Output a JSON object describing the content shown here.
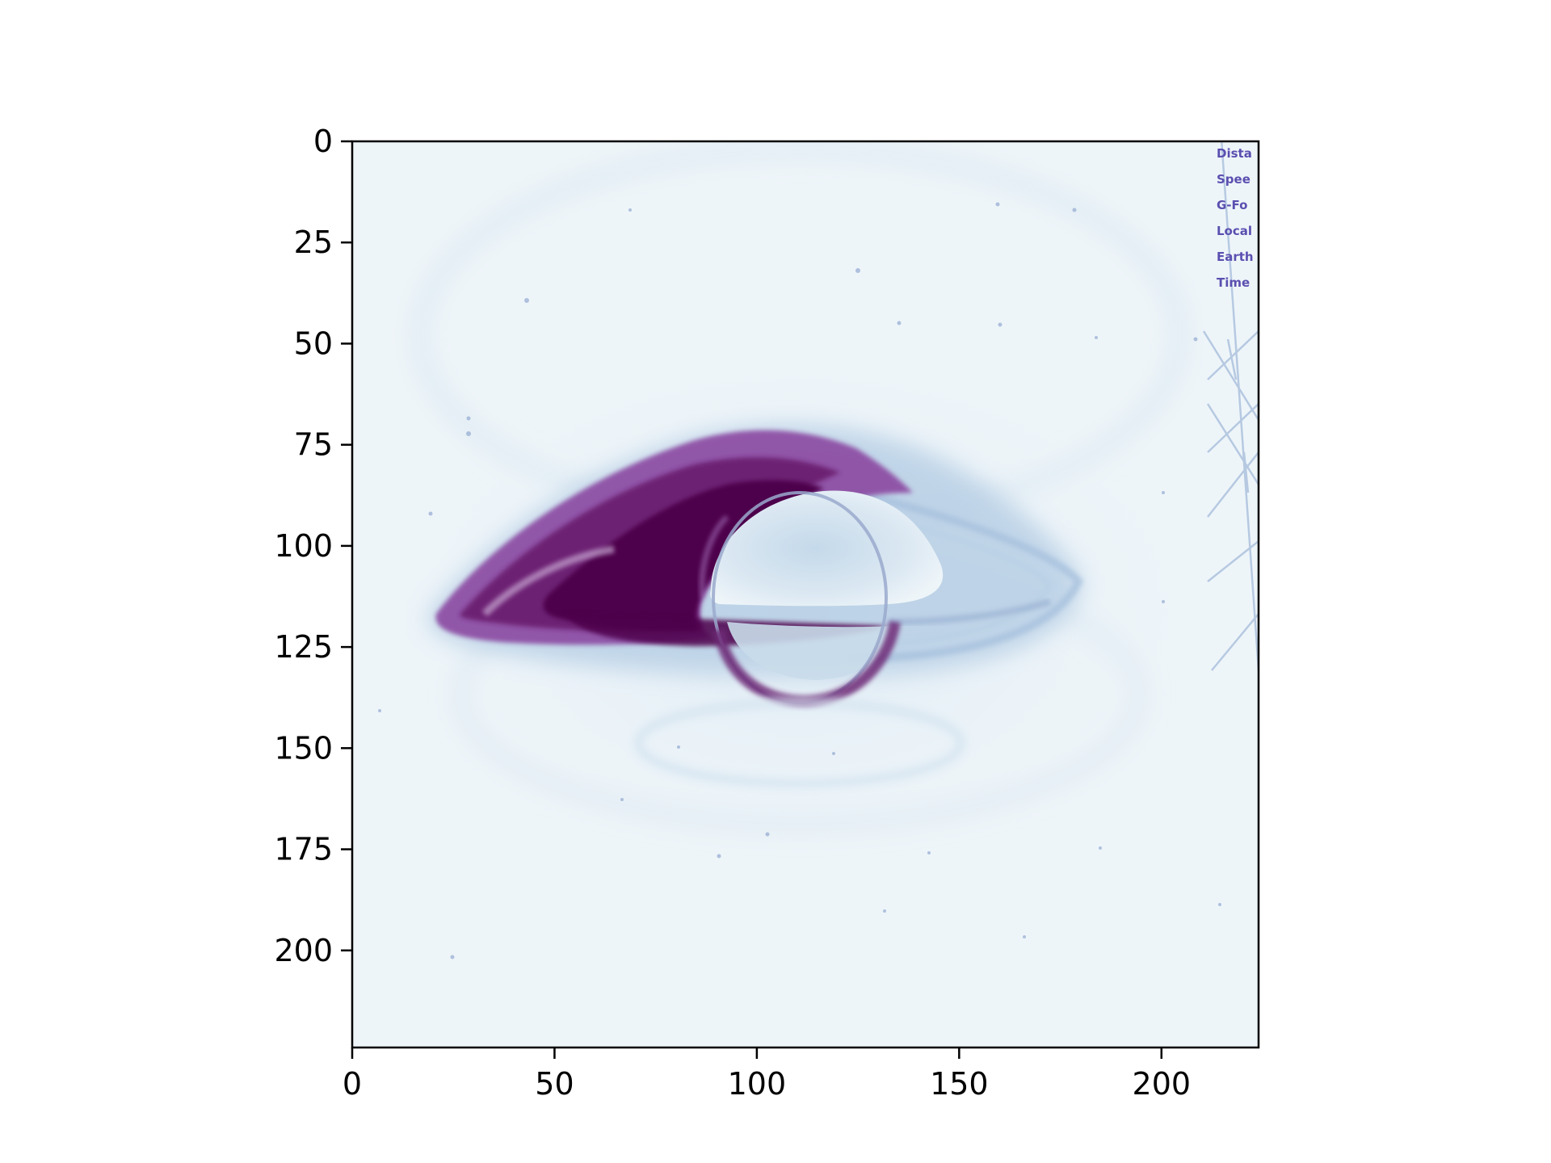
{
  "image": {
    "subject": "black-hole-accretion-disk",
    "colormap": "BuPu",
    "colors": {
      "background": "#eef5f9",
      "faint": "#c9dcec",
      "mid": "#8c96c6",
      "strong": "#88419d",
      "peak": "#4d004b",
      "hud_text": "#5a4fb0"
    }
  },
  "axes": {
    "x_ticks": [
      "0",
      "50",
      "100",
      "150",
      "200"
    ],
    "y_ticks": [
      "0",
      "25",
      "50",
      "75",
      "100",
      "125",
      "150",
      "175",
      "200"
    ],
    "xlim": [
      0,
      224
    ],
    "ylim": [
      224,
      0
    ]
  },
  "hud_overlay": {
    "lines": [
      "Dista",
      "Spee",
      "G-Fo",
      "Local",
      "Earth",
      "Time"
    ]
  }
}
